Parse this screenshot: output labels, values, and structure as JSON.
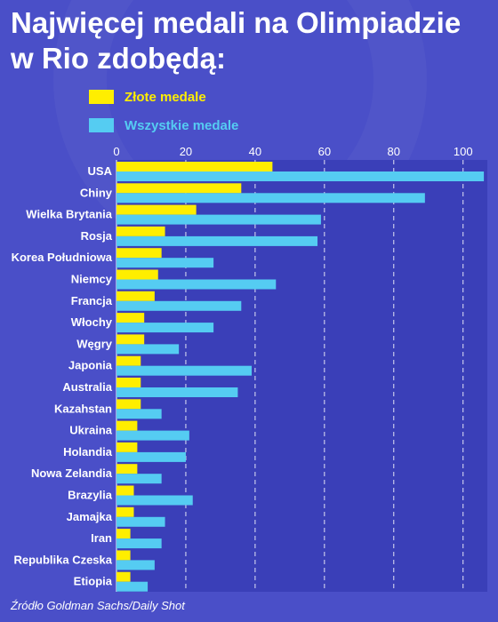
{
  "title": "Najwięcej medali na Olimpiadzie w Rio zdobędą:",
  "source": "Źródło Goldman Sachs/Daily Shot",
  "colors": {
    "background": "#4a4fc8",
    "plot_background": "#3a3fb8",
    "gold": "#ffee00",
    "all": "#55ccf2",
    "text": "#ffffff"
  },
  "legend": [
    {
      "label": "Złote medale",
      "color": "#ffee00"
    },
    {
      "label": "Wszystkie medale",
      "color": "#55ccf2"
    }
  ],
  "chart_data": {
    "type": "bar",
    "orientation": "horizontal",
    "title": "Najwięcej medali na Olimpiadzie w Rio zdobędą:",
    "categories": [
      "USA",
      "Chiny",
      "Wielka Brytania",
      "Rosja",
      "Korea Południowa",
      "Niemcy",
      "Francja",
      "Włochy",
      "Węgry",
      "Japonia",
      "Australia",
      "Kazahstan",
      "Ukraina",
      "Holandia",
      "Nowa Zelandia",
      "Brazylia",
      "Jamajka",
      "Iran",
      "Republika Czeska",
      "Etiopia"
    ],
    "series": [
      {
        "name": "Złote medale",
        "values": [
          45,
          36,
          23,
          14,
          13,
          12,
          11,
          8,
          8,
          7,
          7,
          7,
          6,
          6,
          6,
          5,
          5,
          4,
          4,
          4
        ]
      },
      {
        "name": "Wszystkie medale",
        "values": [
          106,
          89,
          59,
          58,
          28,
          46,
          36,
          28,
          18,
          39,
          35,
          13,
          21,
          20,
          13,
          22,
          14,
          13,
          11,
          9
        ]
      }
    ],
    "xticks": [
      0,
      20,
      40,
      60,
      80,
      100
    ],
    "xlim": [
      0,
      107
    ],
    "grid": true,
    "legend_position": "top-left"
  }
}
